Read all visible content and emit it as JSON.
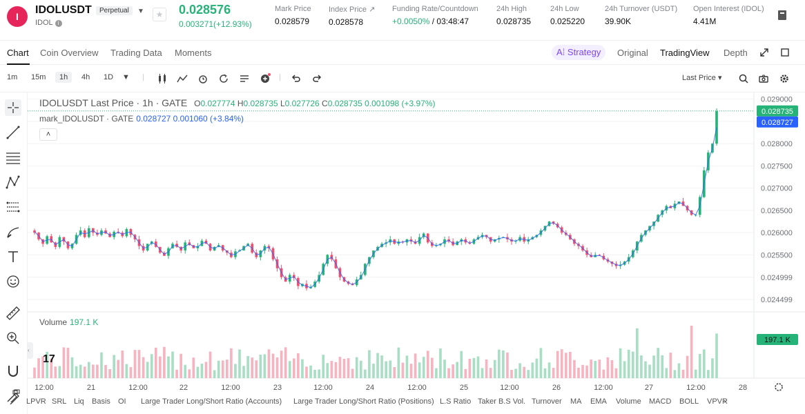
{
  "header": {
    "symbol": "IDOLUSDT",
    "badge": "Perpetual",
    "base": "IDOL",
    "logo_letter": "I",
    "price": "0.028576",
    "change": "0.003271(+12.93%)",
    "stats": [
      {
        "label": "Mark Price",
        "value": "0.028579"
      },
      {
        "label": "Index Price ↗",
        "value": "0.028578"
      },
      {
        "label": "Funding Rate/Countdown",
        "value_green": "+0.0050%",
        "value": " / 03:48:47"
      },
      {
        "label": "24h High",
        "value": "0.028735"
      },
      {
        "label": "24h Low",
        "value": "0.025220"
      },
      {
        "label": "24h Turnover (USDT)",
        "value": "39.90K"
      },
      {
        "label": "Open Interest (IDOL)",
        "value": "4.41M"
      }
    ]
  },
  "tabs": {
    "chart": "Chart",
    "coin_overview": "Coin Overview",
    "trading_data": "Trading Data",
    "moments": "Moments",
    "strategy": "Strategy",
    "original": "Original",
    "tradingview": "TradingView",
    "depth": "Depth"
  },
  "toolbar": {
    "timeframes": [
      "1m",
      "15m",
      "1h",
      "4h",
      "1D"
    ],
    "active_timeframe": "1h",
    "price_type": "Last Price"
  },
  "legend": {
    "title": "IDOLUSDT Last Price · 1h · GATE",
    "o_label": "O",
    "o": "0.027774",
    "h_label": "H",
    "h": "0.028735",
    "l_label": "L",
    "l": "0.027726",
    "c_label": "C",
    "c": "0.028735",
    "chg": "0.001098 (+3.97%)",
    "mark_title": "mark_IDOLUSDT · GATE",
    "mark_vals": "0.028727  0.001060  (+3.84%)",
    "volume_label": "Volume",
    "volume_value": "197.1 K"
  },
  "indicators": [
    "LPVR",
    "SRL",
    "Liq",
    "Basis",
    "OI",
    "Large Trader Long/Short Ratio (Accounts)",
    "Large Trader Long/Short Ratio (Positions)",
    "L.S Ratio",
    "Taker B.S Vol.",
    "Turnover",
    "MA",
    "EMA",
    "Volume",
    "MACD",
    "BOLL",
    "VPVR"
  ],
  "colors": {
    "up": "#26b378",
    "down": "#f0506e",
    "mark": "#2962ff",
    "accent": "#7b45ff"
  },
  "chart_data": {
    "type": "candlestick",
    "title": "IDOLUSDT Last Price · 1h · GATE",
    "y_ticks": [
      "0.029000",
      "0.028500",
      "0.028000",
      "0.027500",
      "0.027000",
      "0.026500",
      "0.026000",
      "0.025500",
      "0.024999",
      "0.024499"
    ],
    "y_range": [
      0.02422,
      0.02915
    ],
    "x_ticks": [
      "12:00",
      "21",
      "12:00",
      "22",
      "12:00",
      "23",
      "12:00",
      "24",
      "12:00",
      "25",
      "12:00",
      "26",
      "12:00",
      "27",
      "12:00",
      "28"
    ],
    "last_price_tag": "0.028735",
    "mark_price_tag": "0.028727",
    "volume_tag": "197.1 K",
    "candles_close": [
      0.026,
      0.02585,
      0.02575,
      0.02592,
      0.02578,
      0.02568,
      0.0259,
      0.0258,
      0.02565,
      0.02575,
      0.02595,
      0.02605,
      0.0259,
      0.0261,
      0.026,
      0.02595,
      0.02605,
      0.02598,
      0.0259,
      0.02602,
      0.026,
      0.02592,
      0.02608,
      0.02595,
      0.02585,
      0.0257,
      0.0256,
      0.02575,
      0.0258,
      0.02568,
      0.02555,
      0.02548,
      0.02565,
      0.02575,
      0.02568,
      0.0256,
      0.02578,
      0.02572,
      0.02565,
      0.0257,
      0.02582,
      0.02575,
      0.0256,
      0.02568,
      0.02572,
      0.0256,
      0.02555,
      0.02545,
      0.02558,
      0.0256,
      0.0257,
      0.02575,
      0.02555,
      0.02545,
      0.0256,
      0.0257,
      0.02565,
      0.0254,
      0.0252,
      0.025,
      0.0249,
      0.02505,
      0.02498,
      0.0248,
      0.02485,
      0.02475,
      0.02478,
      0.0249,
      0.02505,
      0.0253,
      0.0255,
      0.0254,
      0.0252,
      0.025,
      0.0249,
      0.02485,
      0.02482,
      0.02495,
      0.02505,
      0.0253,
      0.02545,
      0.0256,
      0.02568,
      0.02575,
      0.02578,
      0.02585,
      0.02575,
      0.0258,
      0.02578,
      0.02585,
      0.0258,
      0.02575,
      0.0259,
      0.02598,
      0.02578,
      0.0257,
      0.02572,
      0.02575,
      0.02585,
      0.0258,
      0.02572,
      0.0258,
      0.02585,
      0.02578,
      0.02575,
      0.02585,
      0.0259,
      0.02595,
      0.0259,
      0.0258,
      0.02585,
      0.02588,
      0.0259,
      0.02585,
      0.0258,
      0.02582,
      0.0259,
      0.0258,
      0.02585,
      0.0259,
      0.02595,
      0.02605,
      0.02615,
      0.02625,
      0.0262,
      0.02612,
      0.026,
      0.02595,
      0.02585,
      0.02575,
      0.0257,
      0.0256,
      0.0255,
      0.02545,
      0.0255,
      0.02548,
      0.0254,
      0.02535,
      0.0253,
      0.02525,
      0.02528,
      0.02535,
      0.02545,
      0.0256,
      0.0258,
      0.02595,
      0.02605,
      0.02615,
      0.02625,
      0.0264,
      0.0265,
      0.0266,
      0.02655,
      0.02665,
      0.0267,
      0.0266,
      0.0265,
      0.0264,
      0.0264,
      0.0268,
      0.0274,
      0.0278,
      0.028,
      0.02873
    ],
    "volume_max": 197100
  }
}
